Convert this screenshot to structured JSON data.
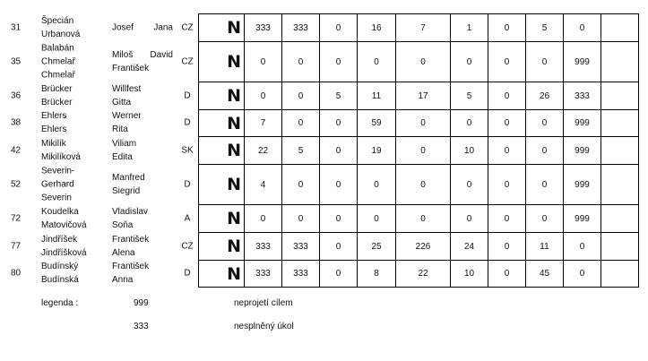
{
  "rows": [
    {
      "num": "31",
      "surnames": [
        "Špecián",
        "Urbanová"
      ],
      "first": [
        "Josef",
        "Jana"
      ],
      "inline": true,
      "country": "CZ",
      "mark": "N",
      "values": [
        "333",
        "333",
        "0",
        "16",
        "7",
        "1",
        "0",
        "5",
        "0",
        ""
      ]
    },
    {
      "num": "35",
      "surnames": [
        "Balabán",
        "Chmelař",
        "Chmelař"
      ],
      "first": [
        "Miloš",
        "David",
        "František"
      ],
      "inline": true,
      "country": "CZ",
      "mark": "N",
      "values": [
        "0",
        "0",
        "0",
        "0",
        "0",
        "0",
        "0",
        "0",
        "999",
        ""
      ]
    },
    {
      "num": "36",
      "surnames": [
        "Brücker",
        "Brücker"
      ],
      "first": [
        "Willfest",
        "Gitta"
      ],
      "country": "D",
      "mark": "N",
      "values": [
        "0",
        "0",
        "5",
        "11",
        "17",
        "5",
        "0",
        "26",
        "333",
        ""
      ]
    },
    {
      "num": "38",
      "surnames": [
        "Ehlers",
        "Ehlers"
      ],
      "first": [
        "Werner",
        "Rita"
      ],
      "country": "D",
      "mark": "N",
      "values": [
        "7",
        "0",
        "0",
        "59",
        "0",
        "0",
        "0",
        "0",
        "999",
        ""
      ]
    },
    {
      "num": "42",
      "surnames": [
        "Mikilík",
        "Mikilíková"
      ],
      "first": [
        "Viliam",
        "Edita"
      ],
      "country": "SK",
      "mark": "N",
      "values": [
        "22",
        "5",
        "0",
        "19",
        "0",
        "10",
        "0",
        "0",
        "999",
        ""
      ]
    },
    {
      "num": "52",
      "surnames": [
        "Severin-",
        "Gerhard",
        "Severin"
      ],
      "first": [
        "Manfred",
        "Siegrid"
      ],
      "country": "D",
      "mark": "N",
      "values": [
        "4",
        "0",
        "0",
        "0",
        "0",
        "0",
        "0",
        "0",
        "999",
        ""
      ]
    },
    {
      "num": "72",
      "surnames": [
        "Koudelka",
        "Matovičová"
      ],
      "first": [
        "Vladislav",
        "Soňa"
      ],
      "country": "A",
      "mark": "N",
      "values": [
        "0",
        "0",
        "0",
        "0",
        "0",
        "0",
        "0",
        "0",
        "999",
        ""
      ]
    },
    {
      "num": "77",
      "surnames": [
        "Jindříšek",
        "Jindříšková"
      ],
      "first": [
        "František",
        "Alena"
      ],
      "country": "CZ",
      "mark": "N",
      "values": [
        "333",
        "333",
        "0",
        "25",
        "226",
        "24",
        "0",
        "11",
        "0",
        ""
      ]
    },
    {
      "num": "80",
      "surnames": [
        "Budínský",
        "Budínská"
      ],
      "first": [
        "František",
        "Anna"
      ],
      "country": "D",
      "mark": "N",
      "values": [
        "333",
        "333",
        "0",
        "8",
        "22",
        "10",
        "0",
        "45",
        "0",
        ""
      ]
    }
  ],
  "legend": {
    "label": "legenda :",
    "items": [
      {
        "code": "999",
        "meaning": "neprojetí cílem"
      },
      {
        "code": "333",
        "meaning": "nesplněný úkol"
      }
    ]
  }
}
